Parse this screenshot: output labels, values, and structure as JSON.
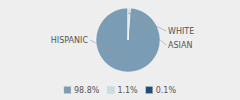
{
  "chart_data": {
    "type": "pie",
    "categories": [
      "HISPANIC",
      "WHITE",
      "ASIAN"
    ],
    "values": [
      98.8,
      1.1,
      0.1
    ],
    "value_labels": [
      "98.8%",
      "1.1%",
      "0.1%"
    ],
    "colors": [
      "#7a9db5",
      "#c8dce8",
      "#1f4e79"
    ],
    "legend": "bottom"
  }
}
